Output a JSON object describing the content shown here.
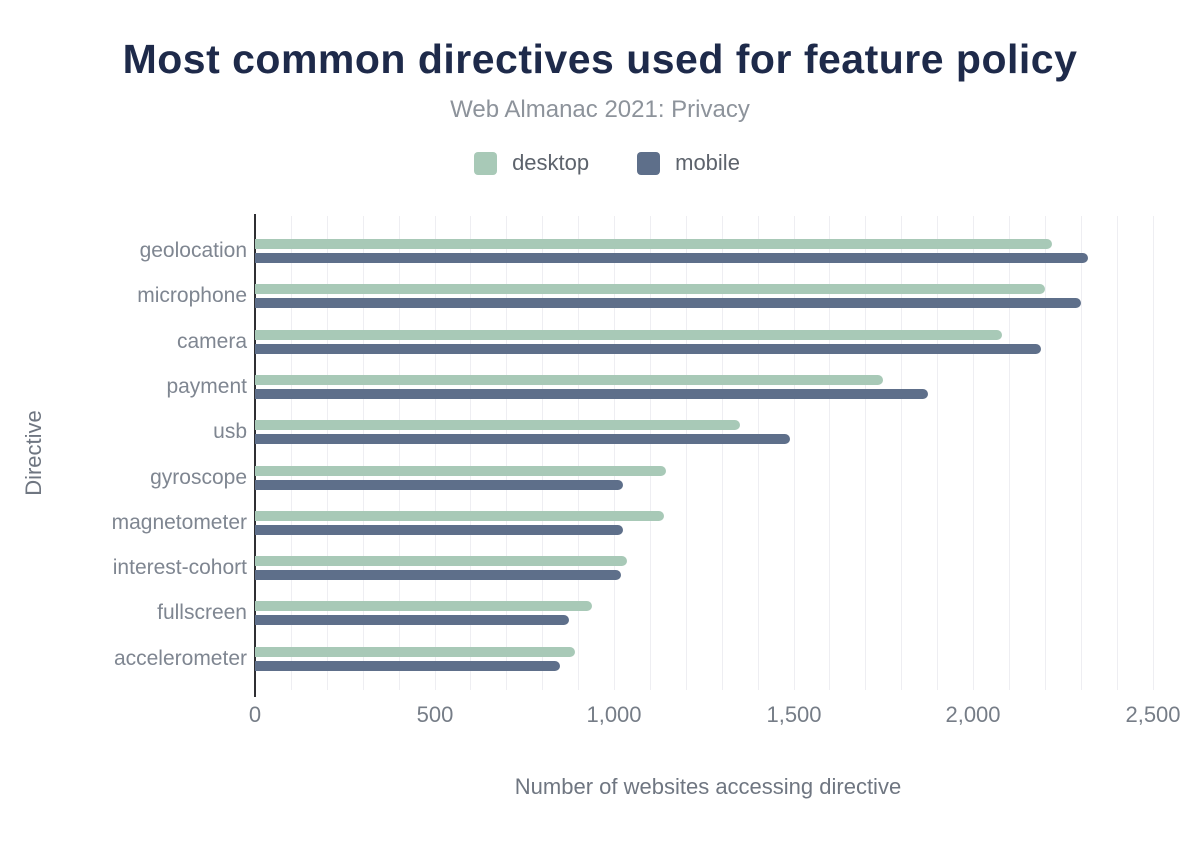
{
  "header": {
    "title": "Most common directives used for feature policy",
    "subtitle": "Web Almanac 2021: Privacy"
  },
  "legend": {
    "items": [
      {
        "label": "desktop",
        "color": "#a8c9b7"
      },
      {
        "label": "mobile",
        "color": "#5e6f8a"
      }
    ]
  },
  "chart_data": {
    "type": "bar",
    "orientation": "horizontal",
    "title": "Most common directives used for feature policy",
    "subtitle": "Web Almanac 2021: Privacy",
    "xlabel": "Number of websites accessing directive",
    "ylabel": "Directive",
    "xlim": [
      0,
      2500
    ],
    "xticks": [
      0,
      500,
      1000,
      1500,
      2000,
      2500
    ],
    "xtick_labels": [
      "0",
      "500",
      "1,000",
      "1,500",
      "2,000",
      "2,500"
    ],
    "grid": "vertical, minor every 100, light gray",
    "legend_position": "top-center",
    "categories": [
      "geolocation",
      "microphone",
      "camera",
      "payment",
      "usb",
      "gyroscope",
      "magnetometer",
      "interest-cohort",
      "fullscreen",
      "accelerometer"
    ],
    "series": [
      {
        "name": "desktop",
        "color": "#a8c9b7",
        "values": [
          2220,
          2200,
          2080,
          1750,
          1350,
          1145,
          1140,
          1035,
          940,
          890
        ]
      },
      {
        "name": "mobile",
        "color": "#5e6f8a",
        "values": [
          2320,
          2300,
          2190,
          1875,
          1490,
          1025,
          1025,
          1020,
          875,
          850
        ]
      }
    ]
  }
}
